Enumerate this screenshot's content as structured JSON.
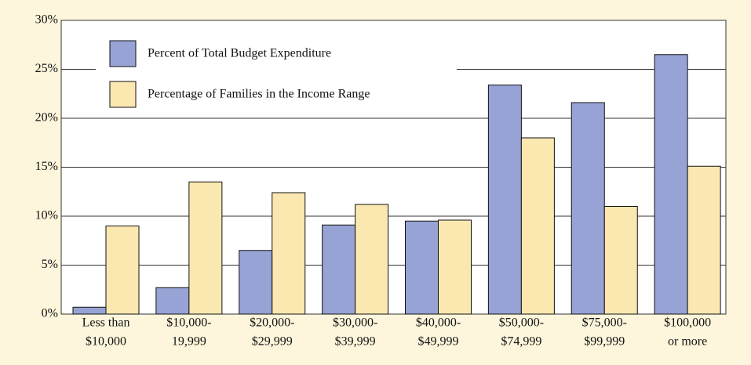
{
  "chart_data": {
    "type": "bar",
    "categories": [
      [
        "Less than",
        "$10,000"
      ],
      [
        "$10,000-",
        "19,999"
      ],
      [
        "$20,000-",
        "$29,999"
      ],
      [
        "$30,000-",
        "$39,999"
      ],
      [
        "$40,000-",
        "$49,999"
      ],
      [
        "$50,000-",
        "$74,999"
      ],
      [
        "$75,000-",
        "$99,999"
      ],
      [
        "$100,000",
        "or more"
      ]
    ],
    "series": [
      {
        "name": "Percent of Total Budget Expenditure",
        "color": "#97a3d4",
        "values": [
          0.7,
          2.7,
          6.5,
          9.1,
          9.5,
          23.4,
          21.6,
          26.5
        ]
      },
      {
        "name": "Percentage of Families in the Income Range",
        "color": "#fbe8b0",
        "values": [
          9.0,
          13.5,
          12.4,
          11.2,
          9.6,
          18.0,
          11.0,
          15.1
        ]
      }
    ],
    "ylim": [
      0,
      30
    ],
    "yticks": [
      {
        "value": 0,
        "label": "0%"
      },
      {
        "value": 5,
        "label": "5%"
      },
      {
        "value": 10,
        "label": "10%"
      },
      {
        "value": 15,
        "label": "15%"
      },
      {
        "value": 20,
        "label": "20%"
      },
      {
        "value": 25,
        "label": "25%"
      },
      {
        "value": 30,
        "label": "30%"
      }
    ],
    "grid": true,
    "legend": "top-left"
  }
}
